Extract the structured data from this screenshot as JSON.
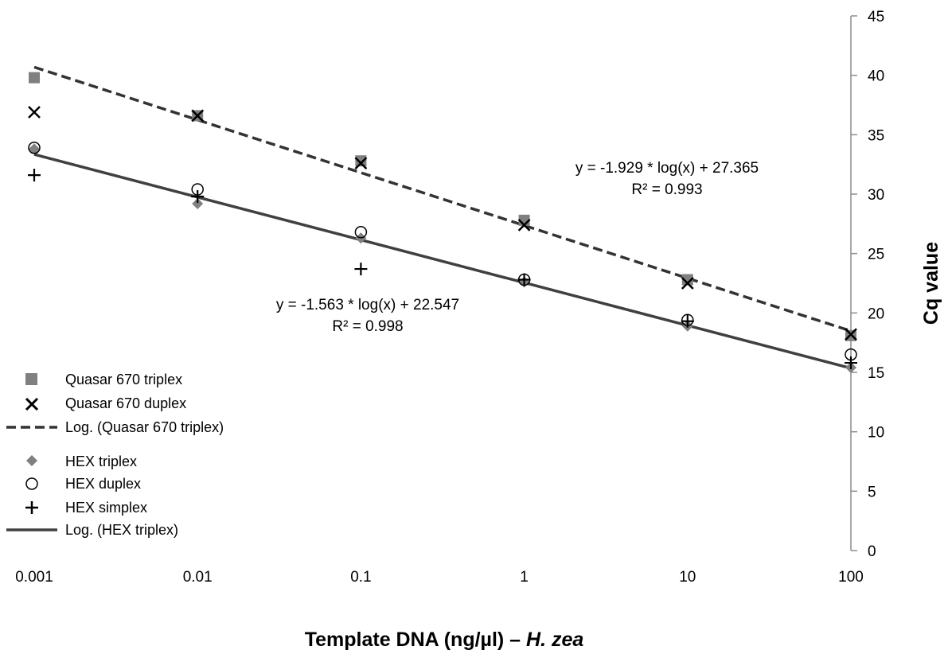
{
  "chart_data": {
    "type": "scatter",
    "x_scale": "log",
    "xlabel_main": "Template DNA (ng/µl) – ",
    "xlabel_species": "H. zea",
    "ylabel": "Cq value",
    "x_ticks": [
      0.001,
      0.01,
      0.1,
      1,
      10,
      100
    ],
    "x_tick_labels": [
      "0.001",
      "0.01",
      "0.1",
      "1",
      "10",
      "100"
    ],
    "xlim": [
      0.001,
      100
    ],
    "ylim": [
      0,
      45
    ],
    "y_ticks": [
      0,
      5,
      10,
      15,
      20,
      25,
      30,
      35,
      40,
      45
    ],
    "y_tick_labels": [
      "0",
      "5",
      "10",
      "15",
      "20",
      "25",
      "30",
      "35",
      "40",
      "45"
    ],
    "y_axis_position": "right",
    "grid": false,
    "legend_position": "bottom-left",
    "series": [
      {
        "name": "Quasar 670 triplex",
        "marker": "square",
        "color": "#808080",
        "x": [
          0.001,
          0.01,
          0.1,
          1,
          10,
          100
        ],
        "y": [
          39.8,
          36.6,
          32.8,
          27.8,
          22.8,
          18.1
        ]
      },
      {
        "name": "Quasar 670 duplex",
        "marker": "x",
        "color": "#000000",
        "x": [
          0.001,
          0.01,
          0.1,
          1,
          10,
          100
        ],
        "y": [
          36.9,
          36.6,
          32.6,
          27.4,
          22.5,
          18.2
        ]
      },
      {
        "name": "HEX triplex",
        "marker": "diamond",
        "color": "#808080",
        "x": [
          0.001,
          0.01,
          0.1,
          1,
          10,
          100
        ],
        "y": [
          33.8,
          29.2,
          26.3,
          22.6,
          18.9,
          15.4
        ]
      },
      {
        "name": "HEX duplex",
        "marker": "circle-open",
        "color": "#000000",
        "x": [
          0.001,
          0.01,
          0.1,
          1,
          10,
          100
        ],
        "y": [
          33.9,
          30.4,
          26.8,
          22.8,
          19.4,
          16.5
        ]
      },
      {
        "name": "HEX simplex",
        "marker": "plus",
        "color": "#000000",
        "x": [
          0.001,
          0.01,
          0.1,
          1,
          10,
          100
        ],
        "y": [
          31.6,
          29.8,
          23.7,
          22.8,
          19.3,
          15.8
        ]
      }
    ],
    "trendlines": [
      {
        "name": "Log. (Quasar 670 triplex)",
        "style": "dashed",
        "color": "#333333",
        "slope": -1.929,
        "intercept": 27.365,
        "equation": "y = -1.929 * log(x) + 27.365",
        "r2": "R² = 0.993"
      },
      {
        "name": "Log. (HEX triplex)",
        "style": "solid",
        "color": "#404040",
        "slope": -1.563,
        "intercept": 22.547,
        "equation": "y = -1.563 * log(x) + 22.547",
        "r2": "R² = 0.998"
      }
    ]
  }
}
